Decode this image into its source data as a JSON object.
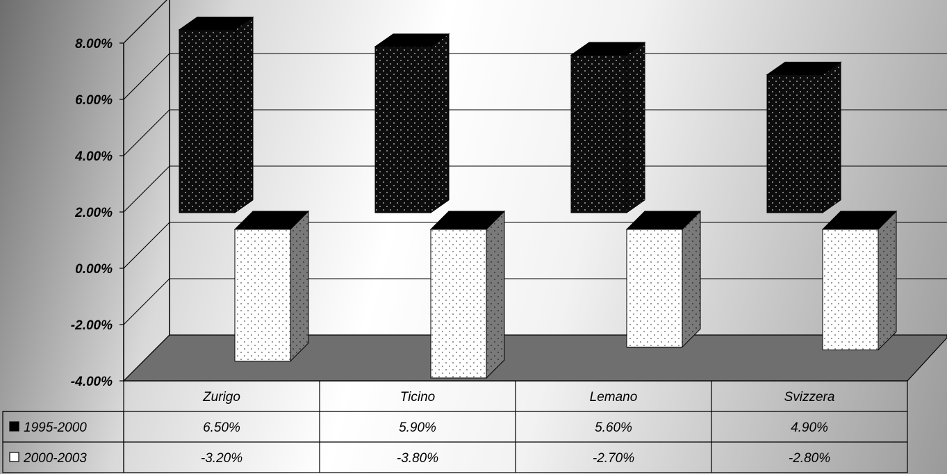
{
  "chart_data": {
    "type": "bar",
    "categories": [
      "Zurigo",
      "Ticino",
      "Lemano",
      "Svizzera"
    ],
    "series": [
      {
        "name": "1995-2000",
        "values": [
          6.5,
          5.9,
          5.6,
          4.9
        ],
        "value_labels": [
          "6.50%",
          "5.90%",
          "5.60%",
          "4.90%"
        ],
        "color": "#111111"
      },
      {
        "name": "2000-2003",
        "values": [
          -3.2,
          -3.8,
          -2.7,
          -2.8
        ],
        "value_labels": [
          "-3.20%",
          "-3.80%",
          "-2.70%",
          "-2.80%"
        ],
        "color": "#ffffff"
      }
    ],
    "ylim": [
      -4,
      8
    ],
    "yticks": [
      8,
      6,
      4,
      2,
      0,
      -2,
      -4
    ],
    "ytick_labels": [
      "8.00%",
      "6.00%",
      "4.00%",
      "2.00%",
      "0.00%",
      "-2.00%",
      "-4.00%"
    ],
    "grid": true,
    "legend": "data table below chart",
    "three_d": true
  },
  "colors": {
    "floor": "#6f6f6f",
    "bar_dark": "#111111",
    "bar_light": "#ffffff"
  }
}
